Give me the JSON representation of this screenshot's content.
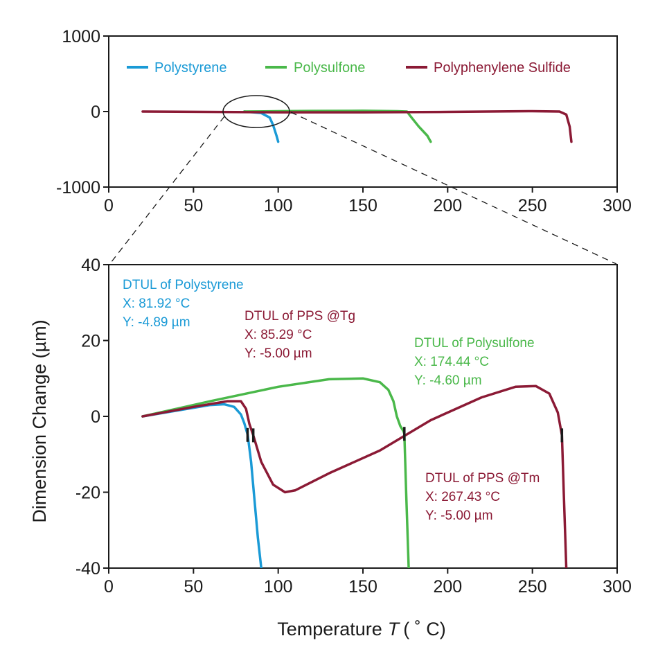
{
  "chart_data": [
    {
      "type": "line",
      "name": "overview",
      "xlim": [
        0,
        300
      ],
      "ylim": [
        -1000,
        1000
      ],
      "xticks": [
        "0",
        "50",
        "100",
        "150",
        "200",
        "250",
        "300"
      ],
      "yticks": [
        "1000",
        "0",
        "-1000"
      ],
      "legend_position": "top",
      "zoom_region": {
        "x": [
          65,
          105
        ],
        "y": [
          -40,
          40
        ]
      },
      "series": [
        {
          "name": "Polystyrene",
          "color": "#1a9ad6",
          "x": [
            80,
            90,
            95,
            97,
            99,
            100
          ],
          "y": [
            0,
            -20,
            -80,
            -180,
            -320,
            -400
          ]
        },
        {
          "name": "Polysulfone",
          "color": "#4ab84a",
          "x": [
            80,
            100,
            120,
            150,
            170,
            176,
            178,
            183,
            188,
            190
          ],
          "y": [
            0,
            4,
            8,
            10,
            5,
            0,
            -60,
            -200,
            -320,
            -400
          ]
        },
        {
          "name": "Polyphenylene Sulfide",
          "color": "#8b1a35",
          "x": [
            20,
            100,
            150,
            200,
            250,
            266,
            270,
            272,
            273
          ],
          "y": [
            0,
            -10,
            -10,
            -5,
            5,
            0,
            -40,
            -200,
            -400
          ]
        }
      ]
    },
    {
      "type": "line",
      "name": "detail",
      "title": "",
      "xlabel_main": "Temperature",
      "xlabel_var": "T",
      "xlabel_unit": "( ˚ C)",
      "ylabel": "Dimension Change (µm)",
      "xlim": [
        0,
        300
      ],
      "ylim": [
        -40,
        40
      ],
      "xticks": [
        "0",
        "50",
        "100",
        "150",
        "200",
        "250",
        "300"
      ],
      "yticks": [
        "40",
        "20",
        "0",
        "-20",
        "-40"
      ],
      "series": [
        {
          "name": "Polystyrene",
          "color": "#1a9ad6",
          "x": [
            20,
            40,
            60,
            68,
            74,
            78,
            80,
            82,
            84,
            86,
            88,
            90
          ],
          "y": [
            0,
            1.5,
            3,
            3.2,
            2.5,
            0.5,
            -1.8,
            -4.89,
            -12,
            -22,
            -32,
            -40
          ]
        },
        {
          "name": "Polysulfone",
          "color": "#4ab84a",
          "x": [
            20,
            60,
            100,
            130,
            150,
            160,
            165,
            168,
            170,
            172,
            174,
            174.44,
            175.5,
            177
          ],
          "y": [
            0,
            4,
            7.8,
            9.8,
            10,
            9,
            7,
            4,
            0,
            -2.5,
            -4,
            -4.6,
            -20,
            -40
          ]
        },
        {
          "name": "Polyphenylene Sulfide",
          "color": "#8b1a35",
          "x": [
            20,
            50,
            70,
            78,
            81,
            83,
            85.29,
            90,
            97,
            104,
            110,
            130,
            160,
            190,
            220,
            240,
            252,
            260,
            265,
            267.43,
            268.5,
            270
          ],
          "y": [
            0,
            2.5,
            4,
            4,
            2,
            -2,
            -5,
            -12,
            -18,
            -20,
            -19.5,
            -15,
            -9,
            -1,
            5,
            7.8,
            8,
            6,
            1,
            -5,
            -20,
            -40
          ]
        }
      ],
      "markers": [
        {
          "x": 81.92,
          "y": -4.89
        },
        {
          "x": 85.29,
          "y": -5.0
        },
        {
          "x": 174.44,
          "y": -4.6
        },
        {
          "x": 267.43,
          "y": -5.0
        }
      ],
      "annotations": [
        {
          "color": "#1a9ad6",
          "lines": [
            "DTUL of Polystyrene",
            "X: 81.92 °C",
            "Y: -4.89 µm"
          ]
        },
        {
          "color": "#8b1a35",
          "lines": [
            "DTUL of PPS @Tg",
            "X: 85.29 °C",
            "Y: -5.00 µm"
          ]
        },
        {
          "color": "#4ab84a",
          "lines": [
            "DTUL of Polysulfone",
            "X: 174.44 °C",
            "Y: -4.60 µm"
          ]
        },
        {
          "color": "#8b1a35",
          "lines": [
            "DTUL of PPS @Tm",
            "X: 267.43 °C",
            "Y: -5.00 µm"
          ]
        }
      ]
    }
  ]
}
